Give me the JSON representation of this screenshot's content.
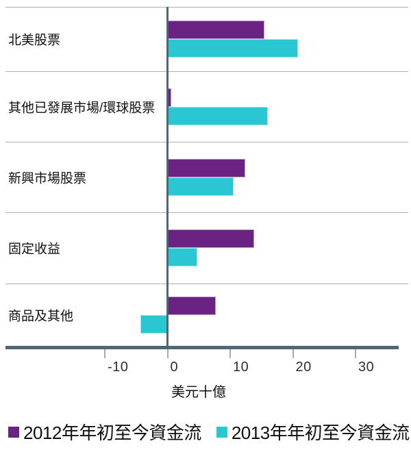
{
  "chart_data": {
    "type": "bar",
    "orientation": "horizontal",
    "title": "",
    "xlabel": "美元十億",
    "categories": [
      "北美股票",
      "其他已發展市場/環球股票",
      "新興市場股票",
      "固定收益",
      "商品及其他"
    ],
    "series": [
      {
        "name": "2012年年初至今資金流",
        "color": "#6a2382",
        "values": [
          15.5,
          0.6,
          12.4,
          13.8,
          7.7
        ]
      },
      {
        "name": "2013年年初至今資金流",
        "color": "#2ac6d2",
        "values": [
          20.8,
          16.0,
          10.5,
          4.8,
          -4.3
        ]
      }
    ],
    "ticks": [
      -10,
      0,
      10,
      20,
      30
    ],
    "tick_labels": [
      "-10",
      "0",
      "10",
      "20",
      "30"
    ],
    "xlim": [
      -25.8,
      38.4
    ],
    "grid": "horizontal-row-separators",
    "legend_position": "bottom"
  },
  "colors": {
    "axis": "#4d6872",
    "gridline": "#adadad",
    "text": "#101010",
    "series_2012": "#6a2382",
    "series_2013": "#2ac6d2"
  }
}
